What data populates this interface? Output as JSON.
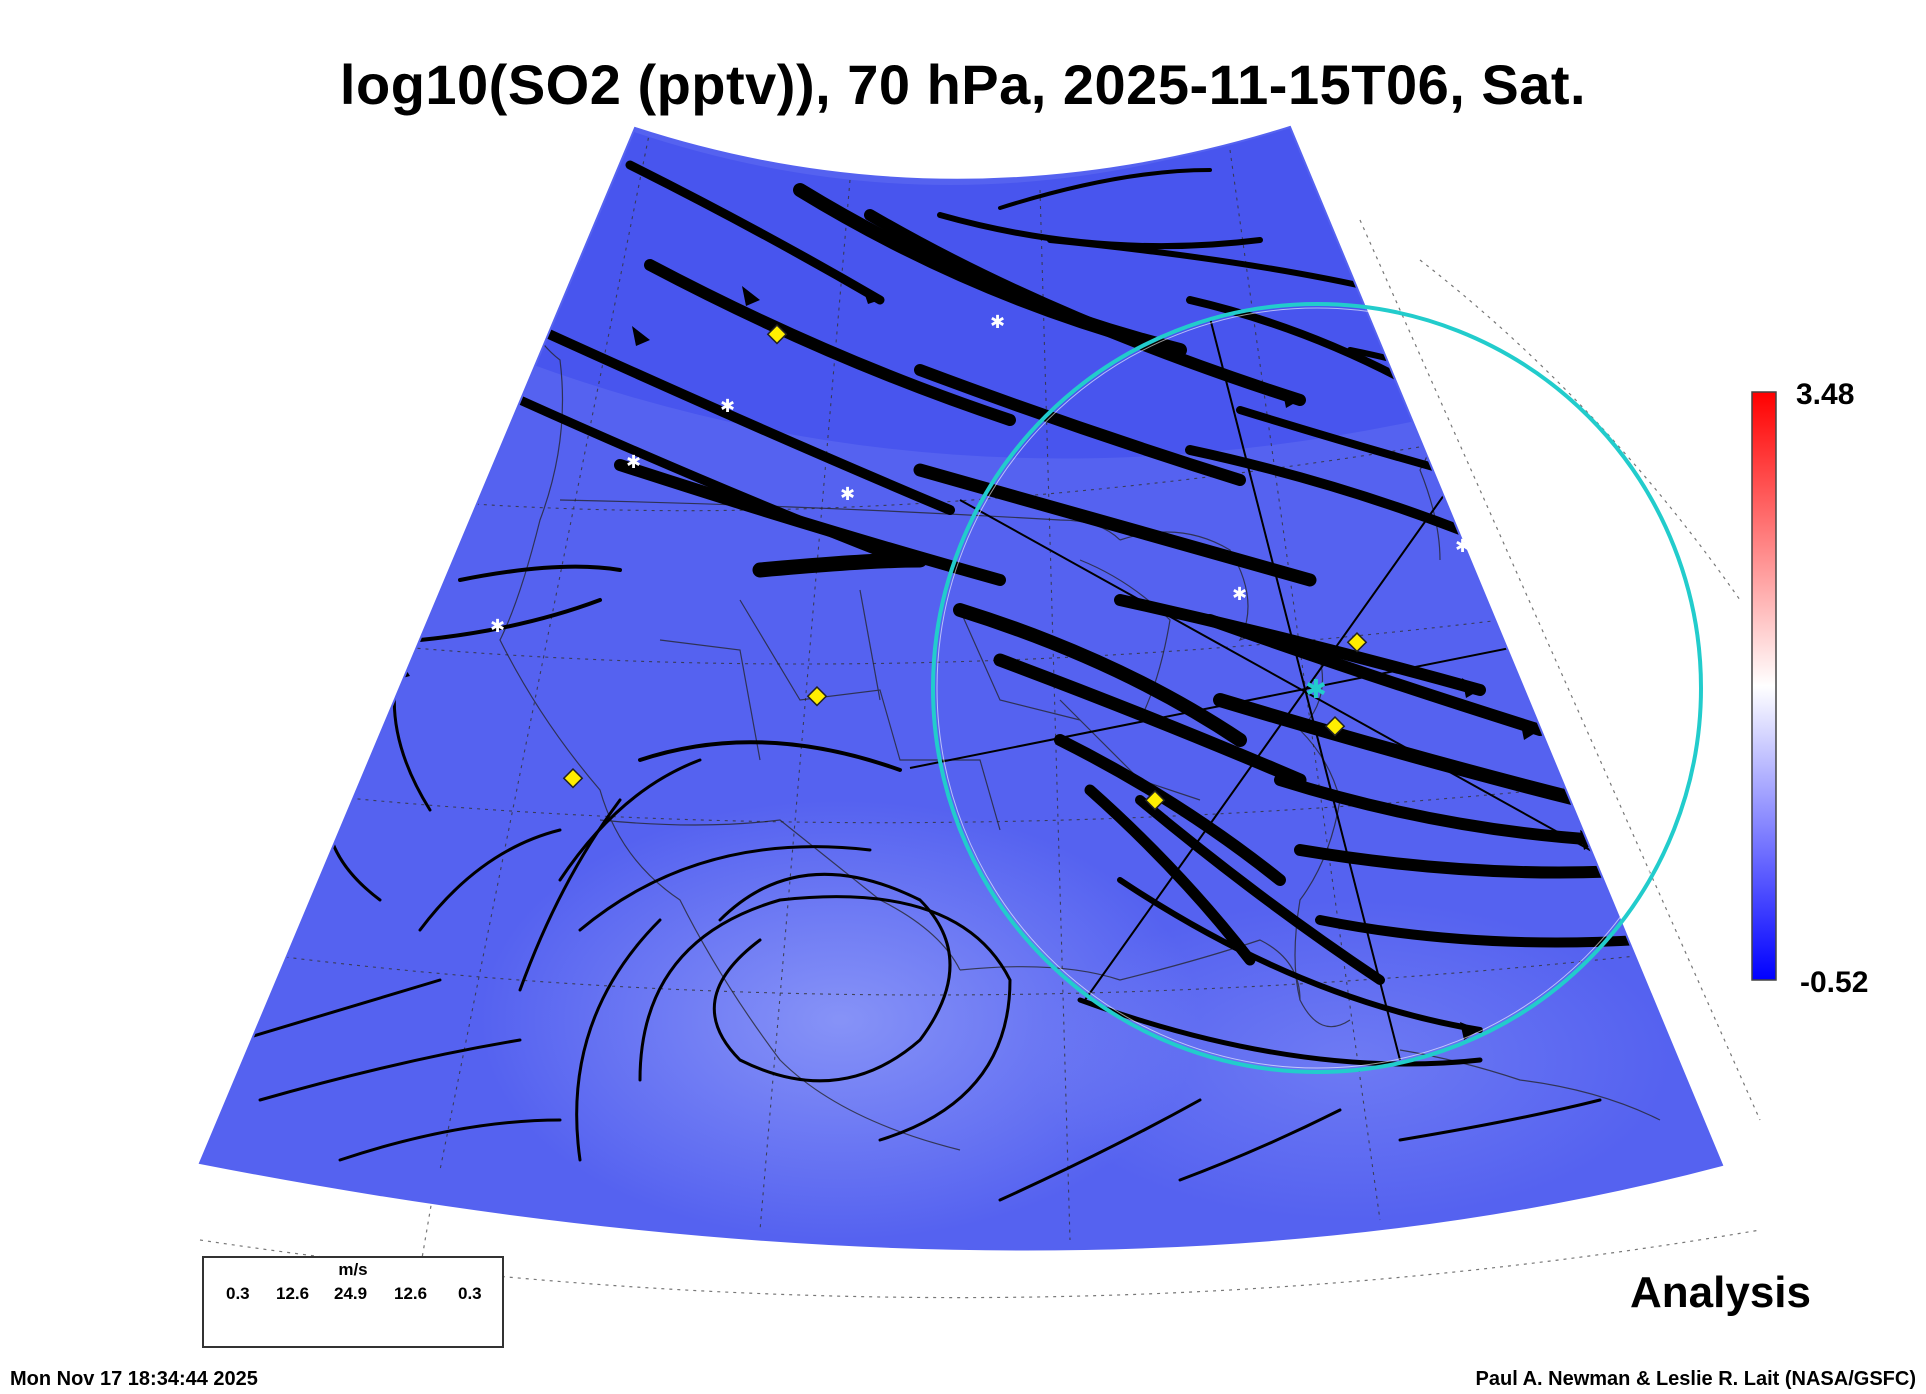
{
  "title": "log10(SO2 (pptv)), 70 hPa, 2025-11-15T06, Sat.",
  "colorbar": {
    "max_label": "3.48",
    "min_label": "-0.52",
    "colors": [
      "#0000ff",
      "#ffffff",
      "#ff0000"
    ]
  },
  "field_color": "#5060f2",
  "field_color_light": "#7f8cf7",
  "circle_color": "#22cccc",
  "marker_color": "#ffee00",
  "analysis_label": "Analysis",
  "legend": {
    "units": "m/s",
    "values": [
      "0.3",
      "12.6",
      "24.9",
      "12.6",
      "0.3"
    ]
  },
  "footer": {
    "timestamp": "Mon Nov 17 18:34:44 2025",
    "credit": "Paul A. Newman & Leslie R. Lait (NASA/GSFC)"
  }
}
